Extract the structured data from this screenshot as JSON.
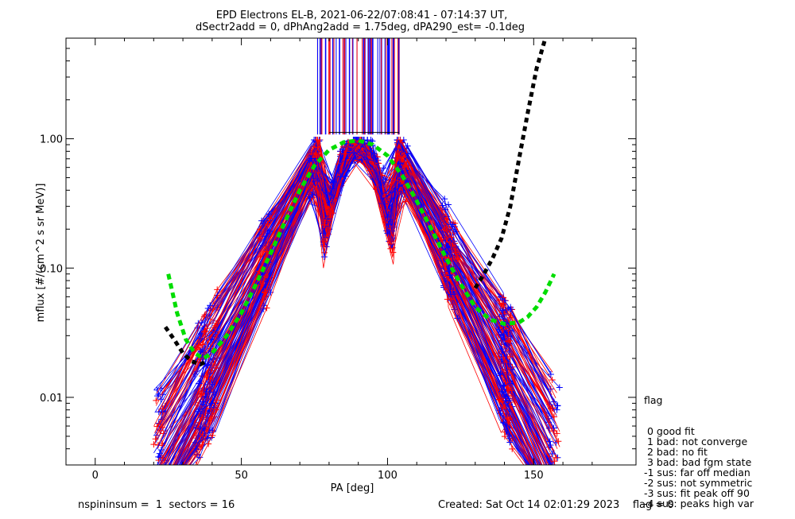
{
  "chart_data": {
    "type": "scatter",
    "title_line1": "EPD Electrons EL-B, 2021-06-22/07:08:41 - 07:14:37 UT,",
    "title_line2": "dSectr2add = 0, dPhAng2add = 1.75deg, dPA290_est=  -0.1deg",
    "xlabel": "PA [deg]",
    "ylabel": "mflux [#/(cm^2 s sr MeV)]",
    "xlim": [
      -10,
      185
    ],
    "ylim": [
      0.003,
      6
    ],
    "ylog": true,
    "x_ticks": [
      {
        "value": 0,
        "label": "0"
      },
      {
        "value": 50,
        "label": "50"
      },
      {
        "value": 100,
        "label": "100"
      },
      {
        "value": 150,
        "label": "150"
      }
    ],
    "y_ticks": [
      {
        "value": 1.0,
        "label": "1.00"
      },
      {
        "value": 0.1,
        "label": "0.10"
      },
      {
        "value": 0.01,
        "label": "0.01"
      }
    ],
    "series": [
      {
        "color": "#ff0000",
        "marker": "+",
        "style": "solid"
      },
      {
        "color": "#0000ff",
        "marker": "+",
        "style": "solid"
      },
      {
        "color": "#00dd00",
        "style": "dashed-thick"
      },
      {
        "color": "#000000",
        "style": "dashed-thick"
      }
    ],
    "fit_green": {
      "x": [
        25,
        28,
        31,
        34,
        37,
        40,
        45,
        50,
        55,
        60,
        65,
        70,
        75,
        80,
        85,
        90,
        95,
        100,
        105,
        110,
        115,
        120,
        125,
        130,
        135,
        140,
        145,
        148,
        151,
        154,
        157
      ],
      "y": [
        0.09,
        0.045,
        0.028,
        0.022,
        0.02,
        0.022,
        0.03,
        0.045,
        0.075,
        0.13,
        0.23,
        0.4,
        0.62,
        0.82,
        0.94,
        0.97,
        0.9,
        0.74,
        0.52,
        0.33,
        0.2,
        0.12,
        0.075,
        0.05,
        0.04,
        0.037,
        0.038,
        0.042,
        0.05,
        0.065,
        0.09
      ]
    },
    "fit_black": {
      "x": [
        24,
        27,
        30,
        33,
        36,
        38
      ],
      "y": [
        0.035,
        0.028,
        0.022,
        0.019,
        0.018,
        0.019
      ],
      "x2": [
        130,
        133,
        136,
        139,
        142,
        145,
        148,
        151,
        154
      ],
      "y2": [
        0.07,
        0.09,
        0.12,
        0.17,
        0.3,
        0.7,
        1.6,
        3.5,
        6.0
      ]
    }
  },
  "legend": {
    "title": "flag",
    "items": [
      " 0 good fit",
      " 1 bad: not converge",
      " 2 bad: no fit",
      " 3 bad: bad fgm state",
      "-1 sus: far off median",
      "-2 sus: not symmetric",
      "-3 sus: fit peak off 90",
      "-4 sus: peaks high var"
    ]
  },
  "footer": {
    "left": "nspininsum =  1  sectors = 16",
    "right": "Created: Sat Oct 14 02:01:29 2023    flag = 0"
  }
}
